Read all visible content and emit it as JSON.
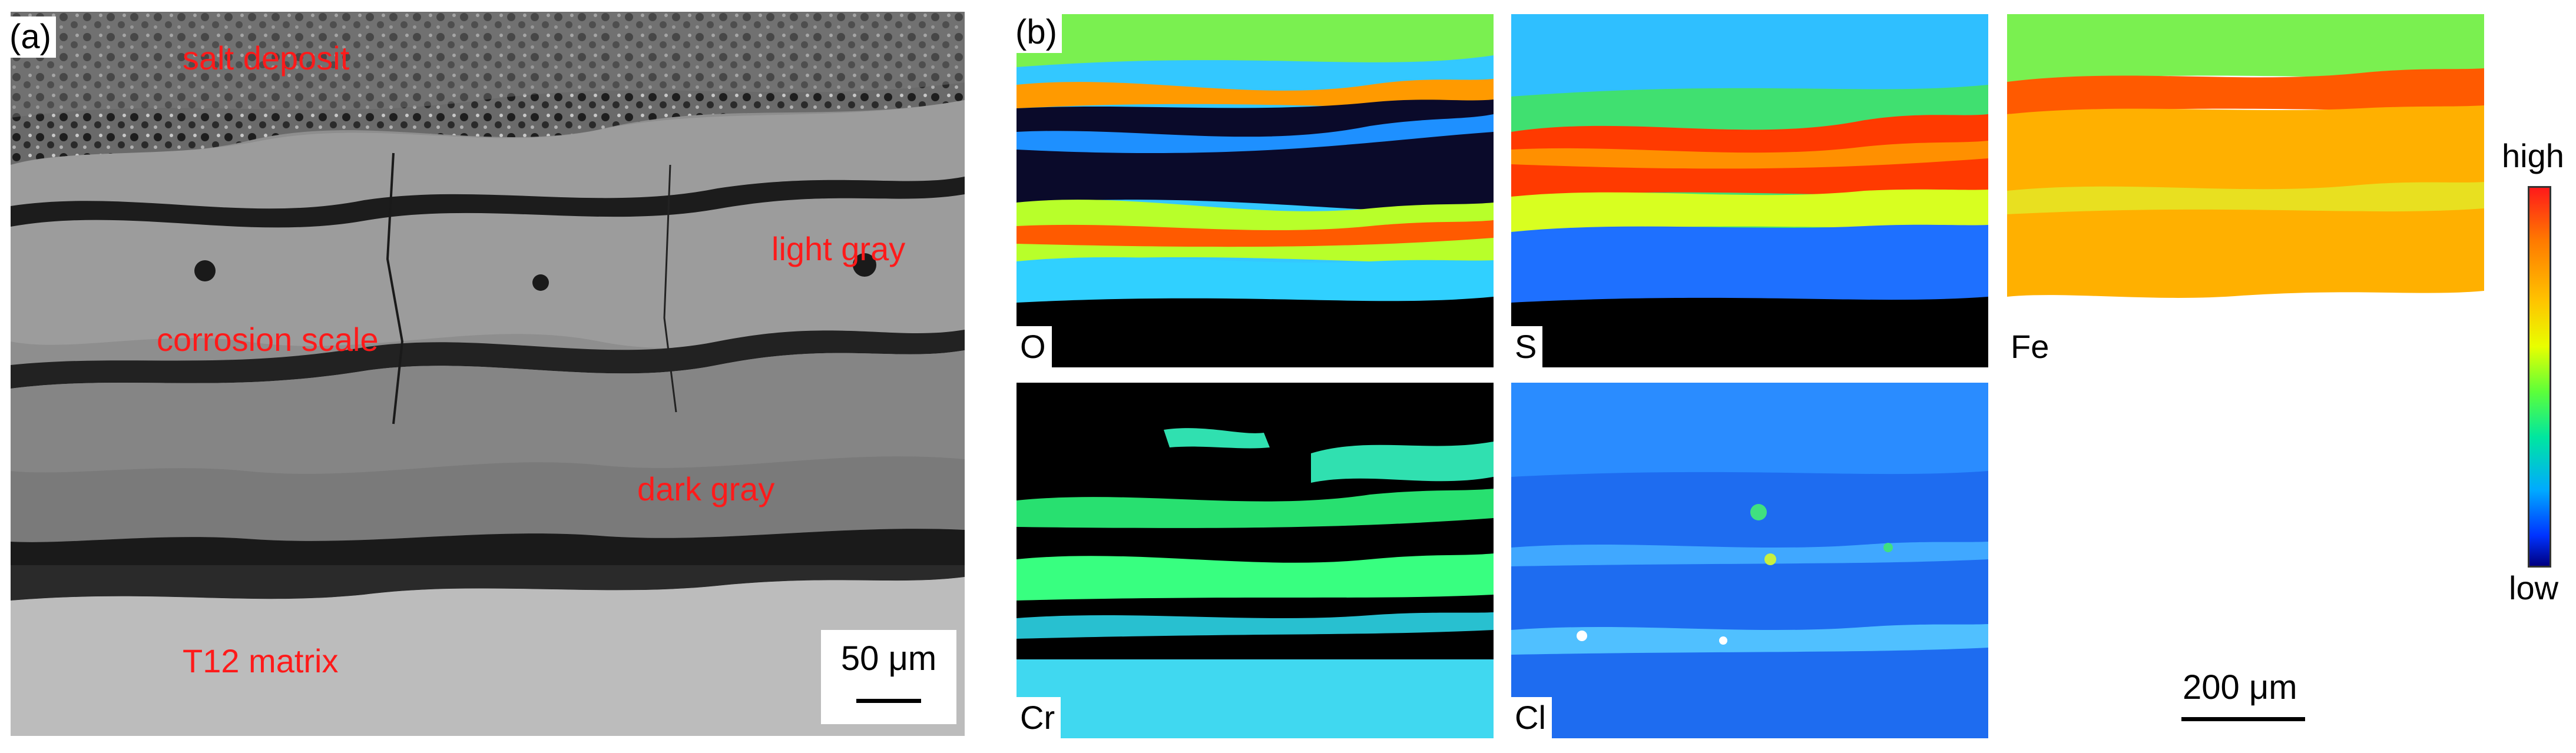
{
  "panel_a": {
    "label": "(a)",
    "labels": {
      "salt_deposit": "salt deposit",
      "light_gray": "light gray",
      "corrosion_scale": "corrosion scale",
      "dark_gray": "dark gray",
      "matrix": "T12 matrix"
    },
    "scale_bar": "50 μm",
    "label_color": "#ff1a1a"
  },
  "panel_b": {
    "label": "(b)",
    "maps": {
      "o": "O",
      "s": "S",
      "fe": "Fe",
      "cr": "Cr",
      "cl": "Cl"
    },
    "colorbar": {
      "high": "high",
      "low": "low"
    },
    "scale_bar": "200 μm"
  }
}
